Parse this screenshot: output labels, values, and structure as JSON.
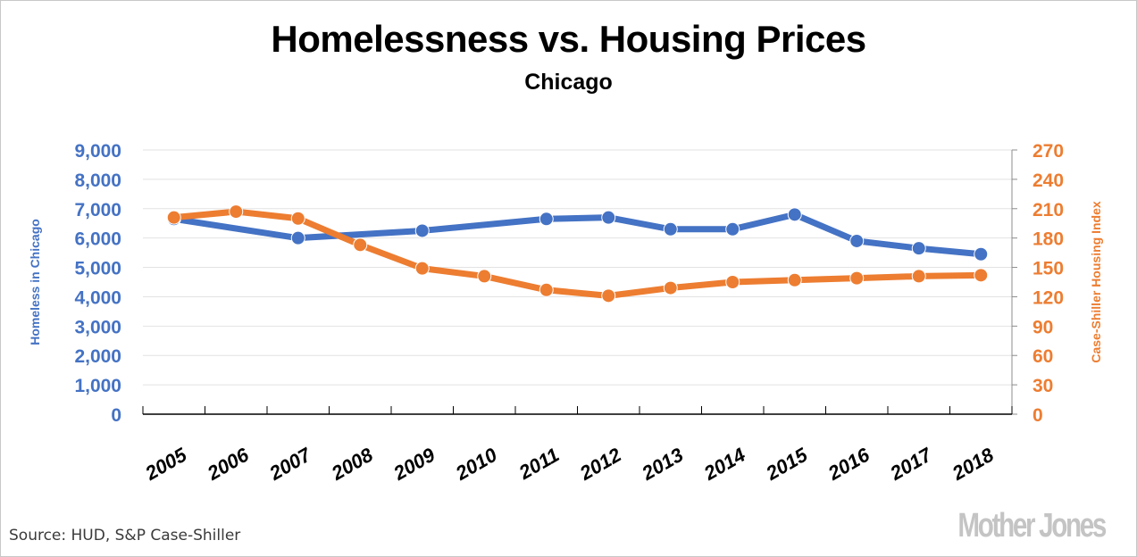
{
  "source_text": "Source: HUD, S&P Case-Shiller",
  "logo_text": "Mother Jones",
  "colors": {
    "homeless": "#4472c4",
    "case_shiller": "#ed7d31",
    "grid": "#e2e2e2",
    "axis": "#000000"
  },
  "chart_data": {
    "type": "line",
    "title": "Homelessness vs. Housing Prices",
    "subtitle": "Chicago",
    "xlabel": "",
    "ylabel_left": "Homeless in Chicago",
    "ylabel_right": "Case-Shiller Housing Index",
    "categories": [
      "2005",
      "2006",
      "2007",
      "2008",
      "2009",
      "2010",
      "2011",
      "2012",
      "2013",
      "2014",
      "2015",
      "2016",
      "2017",
      "2018"
    ],
    "ylim_left": [
      0,
      9000
    ],
    "ylim_right": [
      0,
      270
    ],
    "yticks_left": [
      "0",
      "1,000",
      "2,000",
      "3,000",
      "4,000",
      "5,000",
      "6,000",
      "7,000",
      "8,000",
      "9,000"
    ],
    "yticks_right": [
      "0",
      "30",
      "60",
      "90",
      "120",
      "150",
      "180",
      "210",
      "240",
      "270"
    ],
    "grid": true,
    "legend": "none",
    "series": [
      {
        "name": "Homeless in Chicago",
        "axis": "left",
        "values": [
          6650,
          null,
          6000,
          null,
          6250,
          null,
          6650,
          6700,
          6300,
          6300,
          6800,
          5900,
          5650,
          5450
        ]
      },
      {
        "name": "Case-Shiller Housing Index",
        "axis": "right",
        "values": [
          201,
          207,
          200,
          173,
          149,
          141,
          127,
          121,
          129,
          135,
          137,
          139,
          141,
          142
        ]
      }
    ]
  }
}
